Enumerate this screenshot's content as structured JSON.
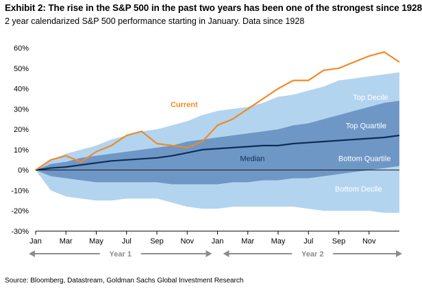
{
  "header": {
    "title": "Exhibit 2: The rise in the S&P 500 in the past two years has been one of the strongest since 1928",
    "subtitle": "2 year calendarized S&P 500 performance starting in January. Data since 1928"
  },
  "footer": {
    "source": "Source: Bloomberg, Datastream, Goldman Sachs Global Investment Research"
  },
  "colors": {
    "current": "#f08a24",
    "median": "#0c2e57",
    "decile_band": "#b3d4ef",
    "quartile_band": "#6f97c6",
    "axis_grey": "#8c8c8c"
  },
  "chart_data": {
    "type": "area",
    "title": "The rise in the S&P 500 in the past two years has been one of the strongest since 1928",
    "ylim": [
      -30,
      60
    ],
    "yticks": [
      -30,
      -20,
      -10,
      0,
      10,
      20,
      30,
      40,
      50,
      60
    ],
    "ytick_labels": [
      "-30%",
      "-20%",
      "-10%",
      "0%",
      "10%",
      "20%",
      "30%",
      "40%",
      "50%",
      "60%"
    ],
    "x_unit": "months since start (0-24)",
    "xlim": [
      0,
      24
    ],
    "xtick_positions": [
      0,
      2,
      4,
      6,
      8,
      10,
      12,
      14,
      16,
      18,
      20,
      22
    ],
    "xtick_labels": [
      "Jan",
      "Mar",
      "May",
      "Jul",
      "Sep",
      "Nov",
      "Jan",
      "Mar",
      "May",
      "Jul",
      "Sep",
      "Nov"
    ],
    "year_labels": [
      "Year 1",
      "Year 2"
    ],
    "band_labels": {
      "top_decile": "Top Decile",
      "top_quartile": "Top Quartile",
      "bottom_quartile": "Bottom Quartile",
      "bottom_decile": "Bottom Decile",
      "median": "Median",
      "current": "Current"
    },
    "x": [
      0,
      1,
      2,
      3,
      4,
      5,
      6,
      7,
      8,
      9,
      10,
      11,
      12,
      13,
      14,
      15,
      16,
      17,
      18,
      19,
      20,
      21,
      22,
      23,
      24
    ],
    "series": [
      {
        "name": "Top Decile",
        "values": [
          0,
          5,
          8,
          10,
          12,
          15,
          17,
          19,
          20,
          22,
          24,
          27,
          29,
          30,
          31,
          33,
          36,
          37,
          39,
          41,
          44,
          45,
          46,
          47,
          48
        ]
      },
      {
        "name": "Top Quartile",
        "values": [
          0,
          3,
          4,
          6,
          7,
          8,
          9,
          10,
          11,
          12,
          14,
          15,
          16,
          17,
          18,
          19,
          20,
          22,
          23,
          25,
          27,
          29,
          31,
          33,
          34
        ]
      },
      {
        "name": "Bottom Quartile",
        "values": [
          0,
          -3,
          -4,
          -5,
          -6,
          -6,
          -6,
          -6,
          -6,
          -7,
          -7,
          -7,
          -7,
          -6,
          -6,
          -5,
          -5,
          -4,
          -4,
          -3,
          -2,
          -1,
          0,
          1,
          2
        ]
      },
      {
        "name": "Bottom Decile",
        "values": [
          0,
          -10,
          -13,
          -14,
          -15,
          -15,
          -14,
          -14,
          -14,
          -16,
          -18,
          -19,
          -19,
          -18,
          -18,
          -18,
          -18,
          -18,
          -19,
          -20,
          -20,
          -20,
          -20,
          -21,
          -21
        ]
      },
      {
        "name": "Median",
        "values": [
          0,
          1,
          1.5,
          2.5,
          3.5,
          4.5,
          5,
          5.5,
          6,
          7,
          8.5,
          10,
          10.5,
          11,
          11.5,
          12,
          12,
          13,
          13.5,
          14,
          14.5,
          15,
          15.5,
          16,
          17
        ]
      },
      {
        "name": "Current",
        "values": [
          0,
          5,
          7,
          4,
          9,
          12,
          17,
          19,
          13,
          12,
          11,
          14,
          22,
          25,
          30,
          35,
          40,
          44,
          44,
          49,
          50,
          53,
          56,
          58,
          53
        ]
      }
    ]
  }
}
